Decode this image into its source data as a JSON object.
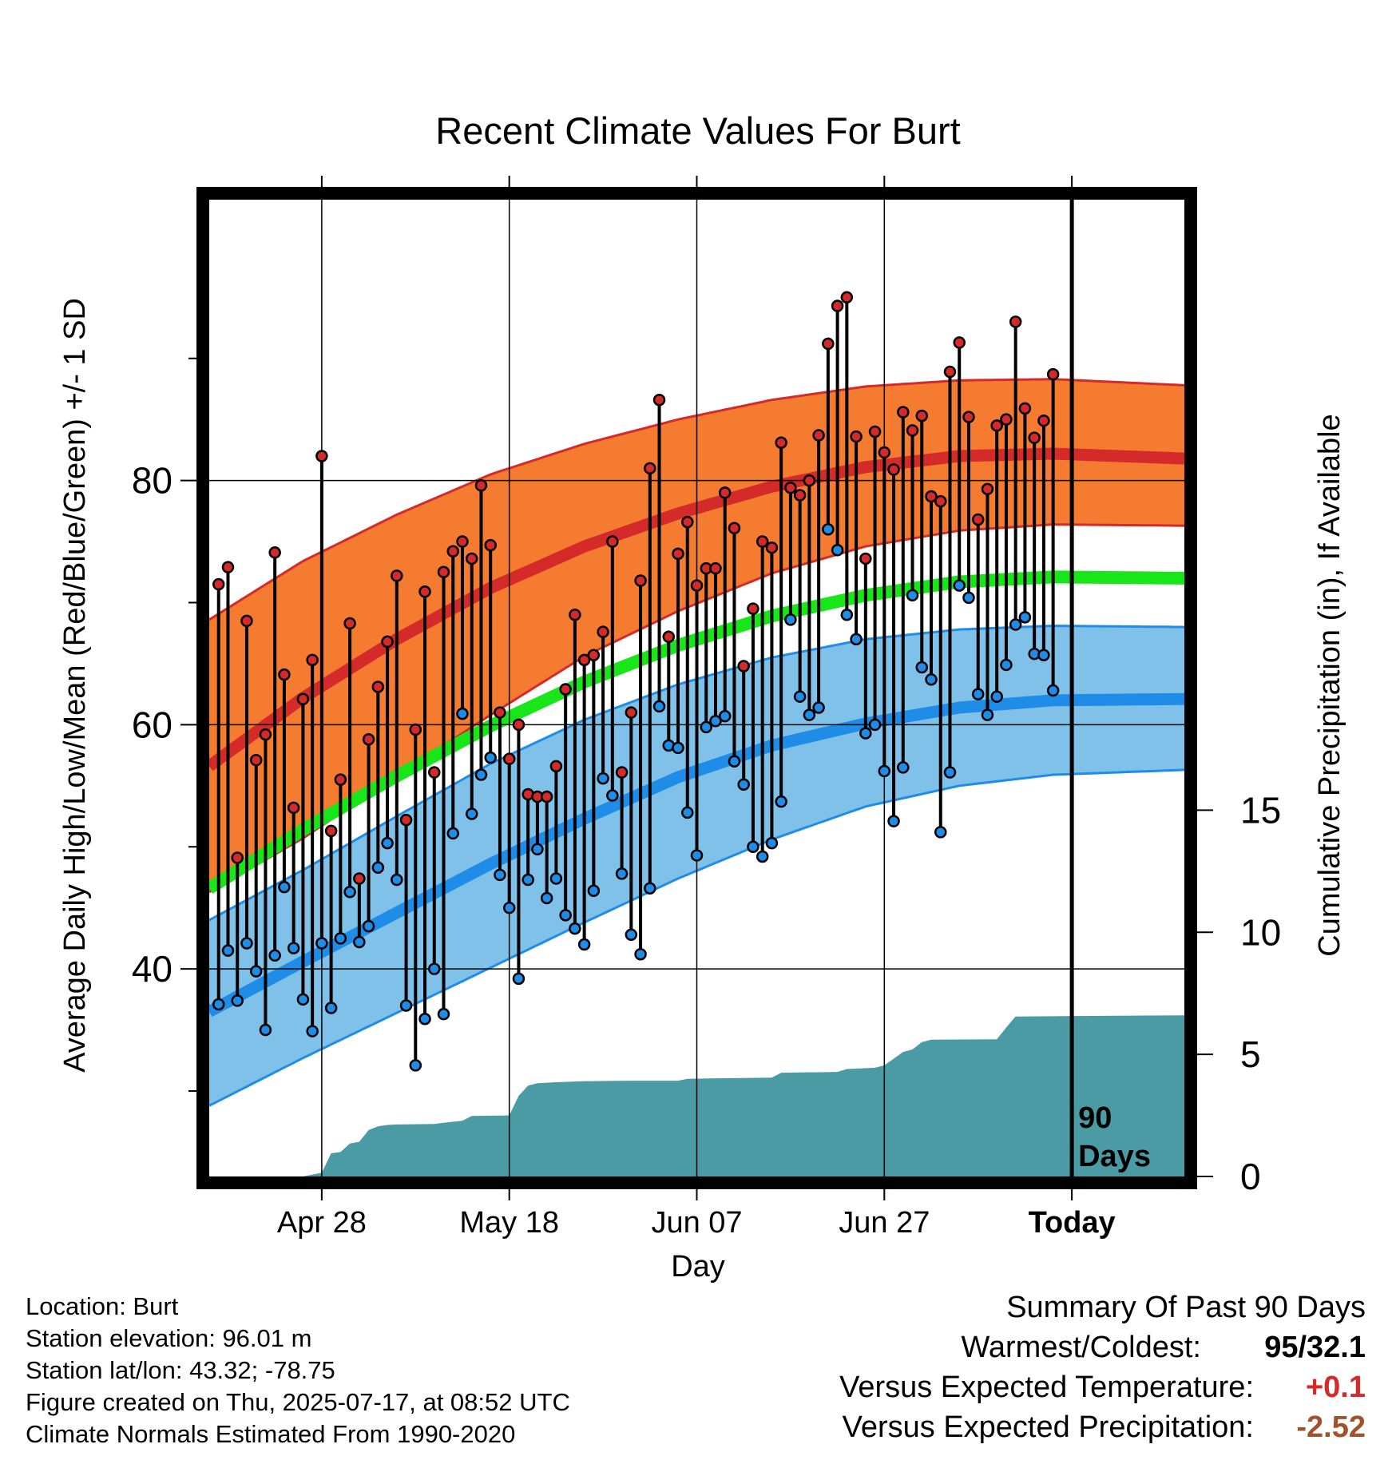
{
  "chart_data": {
    "type": "line",
    "title": "Recent Climate Values For Burt",
    "xlabel": "Day",
    "ylabel": "Average Daily High/Low/Mean (Red/Blue/Green) +/- 1 SD",
    "y2label": "Cumulative Precipitation (in), If Available",
    "x_tick_labels": [
      "Apr 28",
      "May 18",
      "Jun 07",
      "Jun 27",
      "Today"
    ],
    "y_tick_labels": [
      "40",
      "60",
      "80"
    ],
    "y2_tick_labels": [
      "0",
      "5",
      "10",
      "15"
    ],
    "today_annotation": [
      "90",
      "Days"
    ],
    "x_range_days": [
      0,
      104
    ],
    "ylim": [
      23,
      103
    ],
    "y2lim": [
      0,
      40
    ],
    "grid": true,
    "colors": {
      "high_normal": "#d42a2a",
      "high_band": "#f47b30",
      "low_normal": "#1f8de8",
      "low_band": "#80c1ea",
      "mean_normal": "#19e619",
      "precip": "#4a9ba3",
      "high_point": "#d42a2a",
      "low_point": "#1f8de8"
    },
    "normals": {
      "days": [
        0,
        10,
        20,
        30,
        40,
        50,
        60,
        70,
        80,
        90,
        104
      ],
      "high_mean": [
        56.6,
        62.2,
        67.0,
        71.2,
        74.6,
        77.3,
        79.5,
        81.1,
        82.0,
        82.2,
        81.8
      ],
      "high_upper": [
        68.6,
        73.4,
        77.2,
        80.5,
        83.0,
        85.0,
        86.6,
        87.7,
        88.2,
        88.3,
        87.8
      ],
      "high_lower": [
        46.3,
        50.7,
        55.8,
        60.8,
        65.6,
        69.3,
        72.4,
        74.6,
        75.9,
        76.4,
        76.3
      ],
      "low_mean": [
        36.5,
        40.6,
        44.6,
        48.6,
        52.3,
        55.7,
        58.3,
        60.1,
        61.4,
        62.0,
        62.1
      ],
      "low_upper": [
        44.0,
        48.1,
        52.5,
        56.8,
        60.4,
        63.3,
        65.5,
        67.0,
        67.8,
        68.1,
        68.0
      ],
      "low_lower": [
        28.8,
        32.7,
        36.4,
        40.1,
        43.8,
        47.4,
        50.6,
        53.3,
        55.0,
        55.9,
        56.3
      ],
      "mean": [
        46.6,
        51.4,
        55.8,
        59.9,
        63.5,
        66.5,
        68.9,
        70.6,
        71.7,
        72.1,
        72.0
      ]
    },
    "daily_high": [
      71.5,
      72.9,
      49.1,
      68.5,
      57.1,
      59.2,
      74.1,
      64.1,
      53.2,
      62.1,
      65.3,
      82.0,
      51.3,
      55.5,
      68.3,
      47.4,
      58.8,
      63.1,
      66.8,
      72.2,
      52.2,
      59.6,
      70.9,
      56.1,
      72.5,
      74.2,
      75.0,
      73.6,
      79.6,
      74.7,
      61.0,
      57.2,
      60.0,
      54.3,
      54.1,
      54.1,
      56.6,
      62.9,
      69.0,
      65.3,
      65.7,
      67.6,
      75.0,
      56.1,
      61.0,
      71.8,
      81.0,
      86.6,
      67.2,
      74.0,
      76.6,
      71.4,
      72.8,
      72.8,
      79.0,
      76.1,
      64.8,
      69.5,
      75.0,
      74.5,
      83.1,
      79.4,
      78.8,
      80.0,
      83.7,
      91.2,
      94.3,
      95.0,
      83.6,
      73.6,
      84.0,
      82.3,
      80.9,
      85.6,
      84.1,
      85.3,
      78.7,
      78.3,
      88.9,
      91.3,
      85.2,
      76.8,
      79.3,
      84.5,
      85.0,
      93.0,
      85.9,
      83.5,
      84.9,
      88.7
    ],
    "daily_low": [
      37.1,
      41.5,
      37.4,
      42.1,
      39.8,
      35.0,
      41.1,
      46.7,
      41.7,
      37.5,
      34.9,
      42.1,
      36.8,
      42.5,
      46.3,
      42.2,
      43.5,
      48.3,
      50.3,
      47.3,
      37.0,
      32.1,
      35.9,
      40.0,
      36.3,
      51.1,
      60.9,
      52.7,
      55.9,
      57.3,
      47.7,
      45.0,
      39.2,
      47.3,
      49.8,
      45.8,
      47.4,
      44.4,
      43.3,
      42.0,
      46.4,
      55.6,
      54.2,
      47.8,
      42.8,
      41.2,
      46.6,
      61.5,
      58.3,
      58.1,
      52.8,
      49.3,
      59.8,
      60.3,
      60.7,
      57.0,
      55.1,
      50.0,
      49.2,
      50.3,
      53.7,
      68.6,
      62.3,
      60.8,
      61.4,
      76.0,
      74.3,
      69.0,
      67.0,
      59.3,
      60.0,
      56.2,
      52.1,
      56.5,
      70.6,
      64.7,
      63.7,
      51.2,
      56.1,
      71.4,
      70.4,
      62.5,
      60.8,
      62.3,
      64.9,
      68.2,
      68.8,
      65.8,
      65.7,
      62.8
    ],
    "cumulative_precip": {
      "x": [
        0,
        10,
        12,
        13,
        14,
        15,
        16,
        17,
        18,
        19,
        20,
        24,
        25,
        27,
        28,
        32,
        33,
        34,
        35,
        36,
        37,
        40,
        45,
        50,
        51,
        60,
        61,
        67,
        68,
        71,
        72,
        74,
        75,
        76,
        77,
        84,
        85,
        86,
        104
      ],
      "y": [
        0,
        0,
        0.15,
        0.95,
        1.0,
        1.35,
        1.42,
        1.9,
        2.05,
        2.11,
        2.13,
        2.15,
        2.2,
        2.28,
        2.48,
        2.5,
        3.3,
        3.72,
        3.82,
        3.84,
        3.86,
        3.9,
        3.92,
        3.92,
        4.0,
        4.05,
        4.25,
        4.28,
        4.4,
        4.45,
        4.55,
        5.1,
        5.2,
        5.5,
        5.6,
        5.62,
        6.1,
        6.55,
        6.6
      ]
    }
  },
  "footer": {
    "location": "Location: Burt",
    "elevation": "Station elevation: 96.01 m",
    "latlon": "Station lat/lon: 43.32; -78.75",
    "created": "Figure created on Thu, 2025-07-17, at 08:52 UTC",
    "normals": "Climate Normals Estimated From 1990-2020"
  },
  "summary": {
    "title": "Summary Of Past 90 Days",
    "warm_cold_label": "Warmest/Coldest:",
    "warm_cold_value": "95/32.1",
    "temp_label": "Versus Expected Temperature:",
    "temp_value": "+0.1",
    "temp_color": "#d42a2a",
    "precip_label": "Versus Expected Precipitation:",
    "precip_value": "-2.52",
    "precip_color": "#a0522d"
  }
}
